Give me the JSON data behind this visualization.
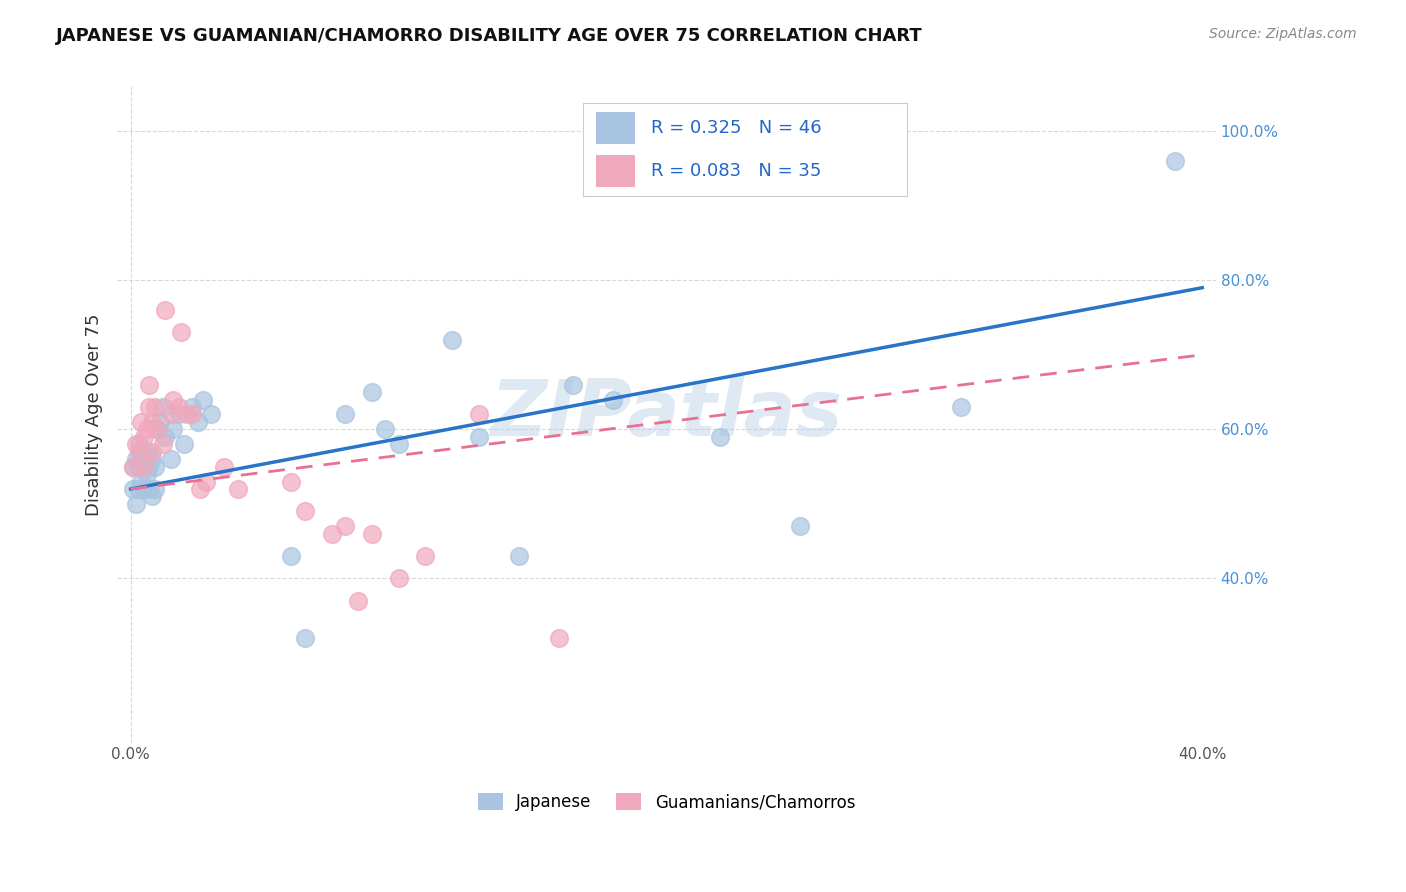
{
  "title": "JAPANESE VS GUAMANIAN/CHAMORRO DISABILITY AGE OVER 75 CORRELATION CHART",
  "source": "Source: ZipAtlas.com",
  "ylabel_label": "Disability Age Over 75",
  "xlim": [
    -0.005,
    0.405
  ],
  "ylim": [
    0.18,
    1.06
  ],
  "xtick_positions": [
    0.0,
    0.05,
    0.1,
    0.15,
    0.2,
    0.25,
    0.3,
    0.35,
    0.4
  ],
  "xticklabels": [
    "0.0%",
    "",
    "",
    "",
    "",
    "",
    "",
    "",
    "40.0%"
  ],
  "yticks_right": [
    0.4,
    0.6,
    0.8,
    1.0
  ],
  "yticklabels_right": [
    "40.0%",
    "60.0%",
    "80.0%",
    "100.0%"
  ],
  "japanese_color": "#a8c4e0",
  "guam_color": "#f0a8bc",
  "trend_japanese_color": "#2874c8",
  "trend_guam_color": "#e87090",
  "japanese_x": [
    0.001,
    0.001,
    0.002,
    0.002,
    0.003,
    0.003,
    0.003,
    0.004,
    0.004,
    0.005,
    0.005,
    0.006,
    0.006,
    0.007,
    0.007,
    0.008,
    0.008,
    0.009,
    0.009,
    0.01,
    0.011,
    0.012,
    0.013,
    0.015,
    0.016,
    0.018,
    0.02,
    0.023,
    0.025,
    0.027,
    0.03,
    0.06,
    0.065,
    0.08,
    0.09,
    0.095,
    0.1,
    0.12,
    0.13,
    0.145,
    0.165,
    0.18,
    0.22,
    0.25,
    0.31,
    0.39
  ],
  "japanese_y": [
    0.52,
    0.55,
    0.5,
    0.56,
    0.52,
    0.55,
    0.58,
    0.53,
    0.57,
    0.52,
    0.56,
    0.54,
    0.57,
    0.52,
    0.55,
    0.51,
    0.56,
    0.52,
    0.55,
    0.6,
    0.61,
    0.63,
    0.59,
    0.56,
    0.6,
    0.62,
    0.58,
    0.63,
    0.61,
    0.64,
    0.62,
    0.43,
    0.32,
    0.62,
    0.65,
    0.6,
    0.58,
    0.72,
    0.59,
    0.43,
    0.66,
    0.64,
    0.59,
    0.47,
    0.63,
    0.96
  ],
  "guam_x": [
    0.001,
    0.002,
    0.003,
    0.004,
    0.005,
    0.005,
    0.006,
    0.007,
    0.007,
    0.008,
    0.008,
    0.009,
    0.01,
    0.012,
    0.013,
    0.015,
    0.016,
    0.018,
    0.019,
    0.021,
    0.023,
    0.026,
    0.028,
    0.035,
    0.04,
    0.06,
    0.065,
    0.075,
    0.08,
    0.085,
    0.09,
    0.1,
    0.11,
    0.13,
    0.16
  ],
  "guam_y": [
    0.55,
    0.58,
    0.57,
    0.61,
    0.55,
    0.59,
    0.6,
    0.63,
    0.66,
    0.57,
    0.61,
    0.63,
    0.6,
    0.58,
    0.76,
    0.62,
    0.64,
    0.63,
    0.73,
    0.62,
    0.62,
    0.52,
    0.53,
    0.55,
    0.52,
    0.53,
    0.49,
    0.46,
    0.47,
    0.37,
    0.46,
    0.4,
    0.43,
    0.62,
    0.32
  ],
  "watermark": "ZIPatlas",
  "background_color": "#ffffff",
  "grid_color": "#d8d8d8",
  "trend_blue_x0": 0.0,
  "trend_blue_y0": 0.52,
  "trend_blue_x1": 0.4,
  "trend_blue_y1": 0.79,
  "trend_pink_x0": 0.0,
  "trend_pink_y0": 0.52,
  "trend_pink_x1": 0.4,
  "trend_pink_y1": 0.7
}
